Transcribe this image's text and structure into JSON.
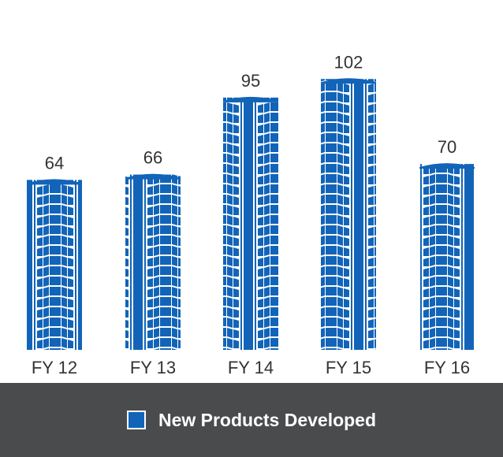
{
  "chart_data": {
    "type": "bar",
    "categories": [
      "FY 12",
      "FY 13",
      "FY 14",
      "FY 15",
      "FY 16"
    ],
    "series": [
      {
        "name": "New Products Developed",
        "values": [
          64,
          66,
          95,
          102,
          70
        ]
      }
    ],
    "data_labels": [
      "64",
      "66",
      "95",
      "102",
      "70"
    ],
    "legend": {
      "position": "bottom",
      "label": "New Products Developed"
    },
    "grid": false,
    "bar_style": "tire-tread",
    "colors": {
      "bar": "#1264b8",
      "legend_background": "#4a4b4c",
      "text": "#333333",
      "legend_text": "#ffffff"
    }
  }
}
